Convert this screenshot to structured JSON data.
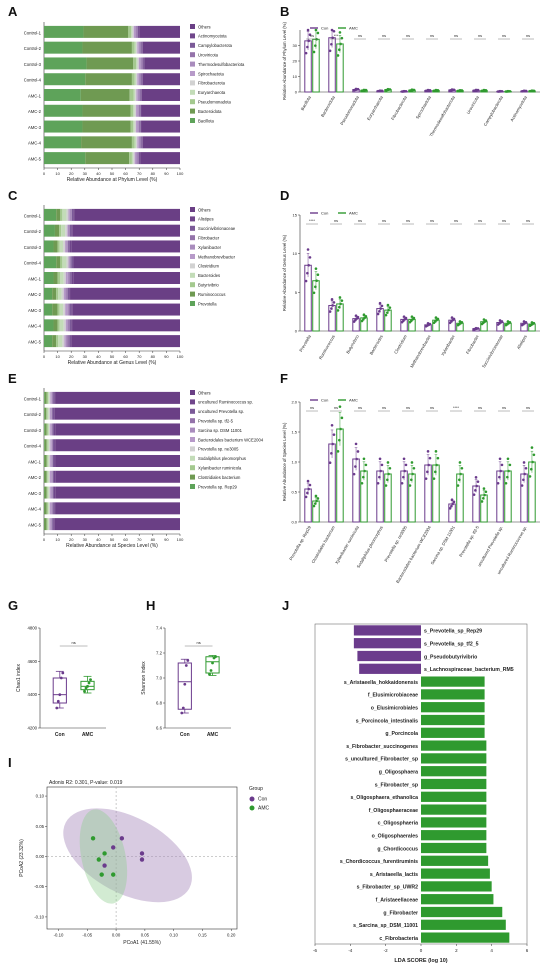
{
  "panel_letters": [
    "A",
    "B",
    "C",
    "D",
    "E",
    "F",
    "G",
    "H",
    "I",
    "J"
  ],
  "colors": {
    "con": "#6b3b8c",
    "amc": "#2f9a2f",
    "con_light": "#a98cbd",
    "amc_light": "#8fce8f"
  },
  "stack_colors": [
    "#5ea35a",
    "#6f9a52",
    "#a4c98f",
    "#c3dcb8",
    "#d2d2d2",
    "#b79ac9",
    "#a98cbd",
    "#9473aa",
    "#7b5a98",
    "#70468b",
    "#6a3f85"
  ],
  "stack_x_label_A": "Relative Abundance at Phylum Level (%)",
  "stack_x_label_C": "Relative Abundance at Genus Level (%)",
  "stack_x_label_E": "Relative Abundance at Species Level (%)",
  "xticks_stack": [
    "0",
    "10",
    "20",
    "30",
    "40",
    "50",
    "60",
    "70",
    "80",
    "90",
    "100"
  ],
  "yticks_I_x": [
    "-0.10",
    "-0.05",
    "0.00",
    "0.05",
    "0.10",
    "0.15",
    "0.20"
  ],
  "yticks_I_y": [
    "0.10",
    "0.05",
    "0.00",
    "-0.05",
    "-0.10"
  ],
  "xticks_J": [
    "-6",
    "-4",
    "-2",
    "0",
    "2",
    "4",
    "6"
  ],
  "chart_data": [
    {
      "type": "bar",
      "panel": "A",
      "stacked": true,
      "orientation": "horizontal",
      "xlabel": "Relative Abundance at Phylum Level (%)",
      "categories": [
        "Control-1",
        "Control-2",
        "Control-3",
        "Control-4",
        "AMC-1",
        "AMC-2",
        "AMC-3",
        "AMC-4",
        "AMC-5"
      ],
      "legend": [
        "Others",
        "Actinomycetota",
        "Campylobacterota",
        "Uroviricota",
        "Thermodesulfobacteriota",
        "Spirochaetota",
        "Fibrobacterota",
        "Euryarchaeota",
        "Pseudomonadota",
        "Bacteroidota",
        "Bacillota"
      ],
      "series": [
        {
          "name": "Bacillota",
          "values": [
            29,
            28,
            31,
            30,
            27,
            28,
            28,
            27,
            30
          ]
        },
        {
          "name": "Bacteroidota",
          "values": [
            33,
            36,
            34,
            34,
            36,
            35,
            35,
            37,
            32
          ]
        },
        {
          "name": "Pseudomonadota",
          "values": [
            2,
            2,
            2,
            2,
            3,
            2,
            2,
            2,
            2
          ]
        },
        {
          "name": "Euryarchaeota",
          "values": [
            1,
            1,
            1,
            1,
            1,
            1,
            1,
            1,
            1
          ]
        },
        {
          "name": "Fibrobacterota",
          "values": [
            1,
            1,
            1,
            1,
            1,
            1,
            1,
            1,
            1
          ]
        },
        {
          "name": "Spirochaetota",
          "values": [
            1,
            1,
            1,
            1,
            1,
            1,
            1,
            1,
            1
          ]
        },
        {
          "name": "Thermodesulfobacteriota",
          "values": [
            1,
            1,
            1,
            1,
            1,
            1,
            1,
            1,
            1
          ]
        },
        {
          "name": "Uroviricota",
          "values": [
            1,
            1,
            1,
            1,
            1,
            1,
            1,
            1,
            1
          ]
        },
        {
          "name": "Campylobacterota",
          "values": [
            0.5,
            0.5,
            0.5,
            0.5,
            0.5,
            0.5,
            0.5,
            0.5,
            0.5
          ]
        },
        {
          "name": "Actinomycetota",
          "values": [
            0.5,
            0.5,
            0.5,
            0.5,
            0.5,
            0.5,
            0.5,
            0.5,
            0.5
          ]
        },
        {
          "name": "Others",
          "values": [
            30,
            27,
            26,
            27,
            28,
            28,
            28,
            27,
            29
          ]
        }
      ]
    },
    {
      "type": "bar",
      "panel": "B",
      "ylabel": "Relative Abundance of Phylum Level (%)",
      "legend": [
        "Con",
        "AMC"
      ],
      "categories": [
        "Bacillota",
        "Bacteroidota",
        "Pseudomonadota",
        "Euryarchaeota",
        "Fibrobacterota",
        "Spirochaetota",
        "Thermodesulfobacteriota",
        "Uroviricota",
        "Campylobacterota",
        "Actinomycetota"
      ],
      "significance": [
        "ns",
        "***",
        "ns",
        "ns",
        "ns",
        "ns",
        "ns",
        "ns",
        "ns",
        "ns"
      ],
      "series": [
        {
          "name": "Con",
          "values": [
            33,
            35,
            1.6,
            0.7,
            0.4,
            1.0,
            1.3,
            1.1,
            0.4,
            0.6
          ]
        },
        {
          "name": "AMC",
          "values": [
            34,
            31,
            1.1,
            1.5,
            1.2,
            1.0,
            0.9,
            1.0,
            0.4,
            0.7
          ]
        }
      ]
    },
    {
      "type": "bar",
      "panel": "C",
      "stacked": true,
      "orientation": "horizontal",
      "xlabel": "Relative Abundance at Genus Level (%)",
      "categories": [
        "Control-1",
        "Control-2",
        "Control-3",
        "Control-4",
        "AMC-1",
        "AMC-2",
        "AMC-3",
        "AMC-4",
        "AMC-5"
      ],
      "legend": [
        "Others",
        "Alistipes",
        "Succinivibrionaceae",
        "Fibrobacter",
        "Xylanibacter",
        "Methanobrevibacter",
        "Clostridium",
        "Bacteroides",
        "Butyrivibrio",
        "Ruminococcus",
        "Prevotella"
      ],
      "series": [
        {
          "name": "Prevotella",
          "values": [
            9,
            8,
            7,
            9,
            7,
            6,
            6,
            7,
            6
          ]
        },
        {
          "name": "Ruminococcus",
          "values": [
            3,
            3,
            3,
            3,
            3,
            3,
            4,
            3,
            3
          ]
        },
        {
          "name": "Butyrivibrio",
          "values": [
            1.5,
            1.5,
            1.5,
            1.5,
            2,
            1.5,
            1.5,
            1.5,
            1.5
          ]
        },
        {
          "name": "Bacteroides",
          "values": [
            3,
            3,
            2.5,
            3,
            2.5,
            2.5,
            2.5,
            3,
            3
          ]
        },
        {
          "name": "Clostridium",
          "values": [
            1.5,
            1.5,
            1.5,
            1.5,
            1.5,
            1.5,
            1.5,
            1.5,
            1.5
          ]
        },
        {
          "name": "Methanobrevibacter",
          "values": [
            1,
            0.5,
            1,
            0.5,
            1.5,
            1,
            1.5,
            1,
            1
          ]
        },
        {
          "name": "Xylanibacter",
          "values": [
            1,
            1,
            1,
            1,
            1,
            1,
            1,
            1,
            1
          ]
        },
        {
          "name": "Fibrobacter",
          "values": [
            0.5,
            0.5,
            0.5,
            0.5,
            1,
            1,
            1,
            1,
            1.5
          ]
        },
        {
          "name": "Succinivibrionaceae",
          "values": [
            1,
            1,
            1,
            1,
            1,
            1,
            1,
            1,
            1
          ]
        },
        {
          "name": "Alistipes",
          "values": [
            1,
            1,
            1,
            1,
            1,
            1,
            1,
            1,
            1
          ]
        },
        {
          "name": "Others",
          "values": [
            77.5,
            78.5,
            80,
            78,
            78.5,
            80.5,
            78.5,
            79,
            79.5
          ]
        }
      ]
    },
    {
      "type": "bar",
      "panel": "D",
      "ylabel": "Relative Abundance of Genus Level (%)",
      "legend": [
        "Con",
        "AMC"
      ],
      "categories": [
        "Prevotella",
        "Ruminococcus",
        "Butyrivibrio",
        "Bacteroides",
        "Clostridium",
        "Methanobrevibacter",
        "Xylanibacter",
        "Fibrobacter",
        "Succinivibrionaceae",
        "Alistipes"
      ],
      "significance": [
        "****",
        "ns",
        "ns",
        "ns",
        "ns",
        "ns",
        "ns",
        "ns",
        "ns",
        "ns"
      ],
      "ylim": [
        0,
        15
      ],
      "series": [
        {
          "name": "Con",
          "values": [
            8.5,
            3.3,
            1.6,
            2.9,
            1.5,
            0.8,
            1.4,
            0.3,
            1.1,
            1.0
          ]
        },
        {
          "name": "AMC",
          "values": [
            6.5,
            3.5,
            1.7,
            2.7,
            1.5,
            1.4,
            1.0,
            1.2,
            1.0,
            0.9
          ]
        }
      ]
    },
    {
      "type": "bar",
      "panel": "E",
      "stacked": true,
      "orientation": "horizontal",
      "xlabel": "Relative Abundance at Species Level (%)",
      "categories": [
        "Control-1",
        "Control-2",
        "Control-3",
        "Control-4",
        "AMC-1",
        "AMC-2",
        "AMC-3",
        "AMC-4",
        "AMC-5"
      ],
      "legend": [
        "Others",
        "uncultured Ruminococcus sp.",
        "uncultured Prevotella sp.",
        "Prevotella sp. tf2-5",
        "Sarcina sp. DSM 11001",
        "Bacteroidales bacterium WCE2004",
        "Prevotella sp. ne3005",
        "Sodaliphilus pleomorphus",
        "Xylanibacter ruminicola",
        "Clostridiales bacterium",
        "Prevotella sp. Rep29"
      ],
      "series": [
        {
          "name": "Prevotella sp. Rep29",
          "values": [
            0.6,
            0.5,
            0.6,
            0.5,
            0.4,
            0.3,
            0.4,
            0.3,
            0.3
          ]
        },
        {
          "name": "Clostridiales bacterium",
          "values": [
            1.3,
            1.2,
            1.4,
            1.3,
            1.5,
            1.6,
            1.5,
            1.7,
            1.5
          ]
        },
        {
          "name": "Xylanibacter ruminicola",
          "values": [
            1.1,
            1.0,
            0.9,
            1.0,
            0.9,
            0.8,
            0.9,
            0.9,
            0.8
          ]
        },
        {
          "name": "Sodaliphilus pleomorphus",
          "values": [
            0.9,
            0.8,
            0.8,
            0.9,
            0.8,
            0.9,
            0.8,
            0.7,
            0.8
          ]
        },
        {
          "name": "Prevotella sp. ne3005",
          "values": [
            0.8,
            0.9,
            0.8,
            1.0,
            0.9,
            0.8,
            0.9,
            0.8,
            0.7
          ]
        },
        {
          "name": "Bacteroidales bacterium WCE2004",
          "values": [
            1.0,
            0.9,
            1.0,
            1.0,
            0.9,
            0.9,
            1.0,
            0.9,
            1.0
          ]
        },
        {
          "name": "Sarcina sp. DSM 11001",
          "values": [
            0.3,
            0.3,
            0.3,
            0.3,
            0.6,
            0.8,
            0.5,
            0.9,
            0.6
          ]
        },
        {
          "name": "Prevotella sp. tf2-5",
          "values": [
            0.7,
            0.6,
            0.6,
            0.6,
            0.5,
            0.4,
            0.5,
            0.5,
            0.4
          ]
        },
        {
          "name": "uncultured Prevotella sp.",
          "values": [
            0.9,
            0.8,
            0.9,
            0.8,
            0.9,
            0.8,
            0.8,
            0.9,
            0.7
          ]
        },
        {
          "name": "uncultured Ruminococcus sp.",
          "values": [
            0.8,
            0.9,
            0.9,
            0.8,
            1.0,
            1.0,
            1.0,
            0.9,
            1.1
          ]
        },
        {
          "name": "Others",
          "values": [
            91.6,
            92.1,
            91.8,
            91.8,
            91.6,
            91.7,
            91.7,
            91.5,
            92.2
          ]
        }
      ]
    },
    {
      "type": "bar",
      "panel": "F",
      "ylabel": "Relative Abundance of Species Level (%)",
      "legend": [
        "Con",
        "AMC"
      ],
      "categories": [
        "Prevotella sp. Rep29",
        "Clostridiales bacterium",
        "Xylanibacter ruminicola",
        "Sodaliphilus pleomorphus",
        "Prevotella sp. ne3005",
        "Bacteroidales bacterium WCE2004",
        "Sarcina sp. DSM 11001",
        "Prevotella sp. tf2-5",
        "uncultured Prevotella sp.",
        "uncultured Ruminococcus sp."
      ],
      "significance": [
        "ns",
        "ns",
        "ns",
        "ns",
        "ns",
        "ns",
        "****",
        "ns",
        "ns",
        "ns"
      ],
      "ylim": [
        0,
        2.0
      ],
      "yticks": [
        "0.0",
        "0.5",
        "1.0",
        "1.5",
        "2.0"
      ],
      "series": [
        {
          "name": "Con",
          "values": [
            0.55,
            1.3,
            1.05,
            0.85,
            0.85,
            0.95,
            0.3,
            0.6,
            0.85,
            0.8
          ]
        },
        {
          "name": "AMC",
          "values": [
            0.35,
            1.55,
            0.85,
            0.8,
            0.8,
            0.95,
            0.8,
            0.45,
            0.85,
            1.0
          ]
        }
      ]
    },
    {
      "type": "box",
      "panel": "G",
      "ylabel": "Chao1 index",
      "categories": [
        "Con",
        "AMC"
      ],
      "yticks": [
        "4200",
        "4400",
        "4600",
        "4800"
      ],
      "ylim": [
        4200,
        4800
      ],
      "annotation": "ns",
      "boxes": [
        {
          "name": "Con",
          "min": 4320,
          "q1": 4350,
          "median": 4400,
          "q3": 4500,
          "max": 4540,
          "points": [
            4320,
            4360,
            4400,
            4500,
            4530
          ]
        },
        {
          "name": "AMC",
          "min": 4410,
          "q1": 4430,
          "median": 4450,
          "q3": 4480,
          "max": 4510,
          "points": [
            4420,
            4440,
            4450,
            4470,
            4490
          ]
        }
      ]
    },
    {
      "type": "box",
      "panel": "H",
      "ylabel": "Shannon index",
      "categories": [
        "Con",
        "AMC"
      ],
      "yticks": [
        "6.6",
        "6.8",
        "7.0",
        "7.2",
        "7.4"
      ],
      "ylim": [
        6.6,
        7.4
      ],
      "annotation": "ns",
      "boxes": [
        {
          "name": "Con",
          "min": 6.72,
          "q1": 6.75,
          "median": 6.97,
          "q3": 7.12,
          "max": 7.15,
          "points": [
            6.72,
            6.76,
            6.95,
            7.1,
            7.14
          ]
        },
        {
          "name": "AMC",
          "min": 7.02,
          "q1": 7.04,
          "median": 7.13,
          "q3": 7.17,
          "max": 7.18,
          "points": [
            7.03,
            7.06,
            7.12,
            7.16,
            7.17
          ]
        }
      ]
    },
    {
      "type": "scatter",
      "panel": "I",
      "title": "Adonis R2: 0.301, P-value: 0.019",
      "xlabel": "PCoA1 (41.55%)",
      "ylabel": "PCoA2 (23.32%)",
      "legend_title": "Group",
      "xlim": [
        -0.12,
        0.21
      ],
      "ylim": [
        -0.12,
        0.115
      ],
      "series": [
        {
          "name": "Con",
          "points": [
            [
              -0.005,
              0.015
            ],
            [
              0.01,
              0.03
            ],
            [
              0.045,
              -0.005
            ],
            [
              0.045,
              0.005
            ],
            [
              -0.02,
              -0.015
            ]
          ]
        },
        {
          "name": "AMC",
          "points": [
            [
              -0.04,
              0.03
            ],
            [
              -0.03,
              -0.005
            ],
            [
              -0.02,
              0.005
            ],
            [
              -0.025,
              -0.03
            ],
            [
              -0.005,
              -0.03
            ]
          ]
        }
      ]
    },
    {
      "type": "bar",
      "panel": "J",
      "orientation": "horizontal",
      "xlabel": "LDA SCORE (log 10)",
      "xlim": [
        -6,
        6
      ],
      "categories": [
        "s_Prevotella_sp_Rep29",
        "s_Prevotella_sp_tf2_5",
        "g_Pseudobutyrivibrio",
        "s_Lachnospiraceae_bacterium_RM5",
        "s_Aristaeella_hokkaidonensis",
        "f_Elusimicrobiaceae",
        "o_Elusimicrobiales",
        "s_Porcincola_intestinalis",
        "g_Porcincola",
        "s_Fibrobacter_succinogenes",
        "s_uncultured_Fibrobacter_sp",
        "g_Oligosphaera",
        "s_Fibrobacter_sp",
        "s_Oligosphaera_ethanolica",
        "f_Oligosphaeraceae",
        "c_Oligosphaeria",
        "o_Oligosphaerales",
        "g_Chordicoccus",
        "s_Chordicoccus_furentiruminis",
        "s_Aristaeella_lactis",
        "s_Fibrobacter_sp_UWR2",
        "f_Aristaeellaceae",
        "g_Fibrobacter",
        "s_Sarcina_sp_DSM_11001",
        "c_Fibrobacteria"
      ],
      "values": [
        -3.8,
        -3.8,
        -3.6,
        -3.5,
        3.6,
        3.6,
        3.6,
        3.6,
        3.6,
        3.7,
        3.7,
        3.7,
        3.7,
        3.7,
        3.7,
        3.7,
        3.7,
        3.7,
        3.8,
        3.9,
        4.0,
        4.1,
        4.6,
        4.8,
        5.0
      ]
    }
  ]
}
